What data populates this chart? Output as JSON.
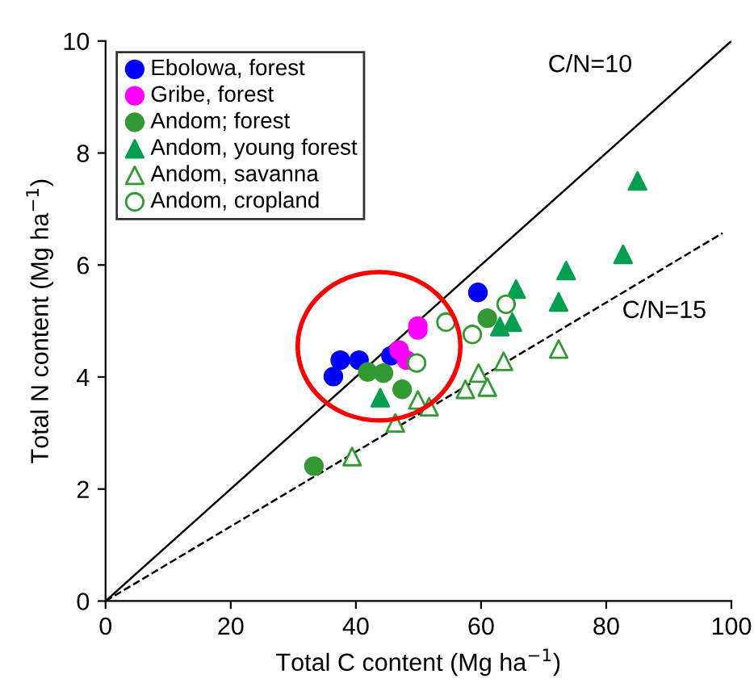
{
  "chart_data": {
    "type": "scatter",
    "xlabel": "Total C content (Mg ha$^{−1}$)",
    "ylabel": "Total N content (Mg ha$^{−1}$)",
    "xlim": [
      0,
      100
    ],
    "ylim": [
      0,
      10
    ],
    "xticks": [
      0,
      20,
      40,
      60,
      80,
      100
    ],
    "yticks": [
      0,
      2,
      4,
      6,
      8,
      10
    ],
    "grid": false,
    "legend": "top left",
    "series": [
      {
        "name": "Ebolowa, forest",
        "color": "#0000ff",
        "marker": "circle",
        "x": [
          36.4,
          37.5,
          40.5,
          45.6,
          59.5
        ],
        "values": [
          4.01,
          4.3,
          4.3,
          4.38,
          5.51
        ]
      },
      {
        "name": "Gribe, forest",
        "color": "#ff00ff",
        "marker": "circle",
        "x": [
          49.9,
          49.9,
          46.9,
          48.1
        ],
        "values": [
          4.91,
          4.84,
          4.48,
          4.3
        ]
      },
      {
        "name": "Andom; forest",
        "color": "#339933",
        "marker": "circle",
        "x": [
          41.9,
          44.4,
          47.4,
          33.3,
          61.0
        ],
        "values": [
          4.09,
          4.07,
          3.78,
          2.41,
          5.05
        ]
      },
      {
        "name": "Andom, young forest",
        "color": "#00a050",
        "marker": "triangle",
        "x": [
          43.9,
          85.0,
          82.7,
          73.6,
          65.6,
          72.4,
          65.0,
          63.0
        ],
        "values": [
          3.63,
          7.5,
          6.19,
          5.9,
          5.57,
          5.34,
          4.98,
          4.9
        ]
      },
      {
        "name": "Andom, savanna",
        "color": "#339933",
        "marker": "triangle",
        "x": [
          39.4,
          46.3,
          49.9,
          51.7,
          57.5,
          59.6,
          61.0,
          63.6,
          72.4
        ],
        "values": [
          2.58,
          3.18,
          3.59,
          3.47,
          3.78,
          4.07,
          3.82,
          4.28,
          4.5
        ]
      },
      {
        "name": "Andom, cropland",
        "color": "#339933",
        "marker": "circle",
        "x": [
          49.7,
          54.4,
          58.6,
          64.0
        ],
        "values": [
          4.25,
          4.98,
          4.76,
          5.3
        ]
      },
      {
        "type": "line",
        "name": "C/N=10",
        "color": "#000000",
        "line_style": "solid",
        "marker": "none",
        "x": [
          0,
          100
        ],
        "values": [
          0,
          10
        ]
      },
      {
        "type": "line",
        "name": "C/N=15",
        "color": "#000000",
        "line_style": "dashed",
        "marker": "none",
        "x": [
          0,
          98.6
        ],
        "values": [
          0,
          6.57
        ]
      }
    ]
  }
}
